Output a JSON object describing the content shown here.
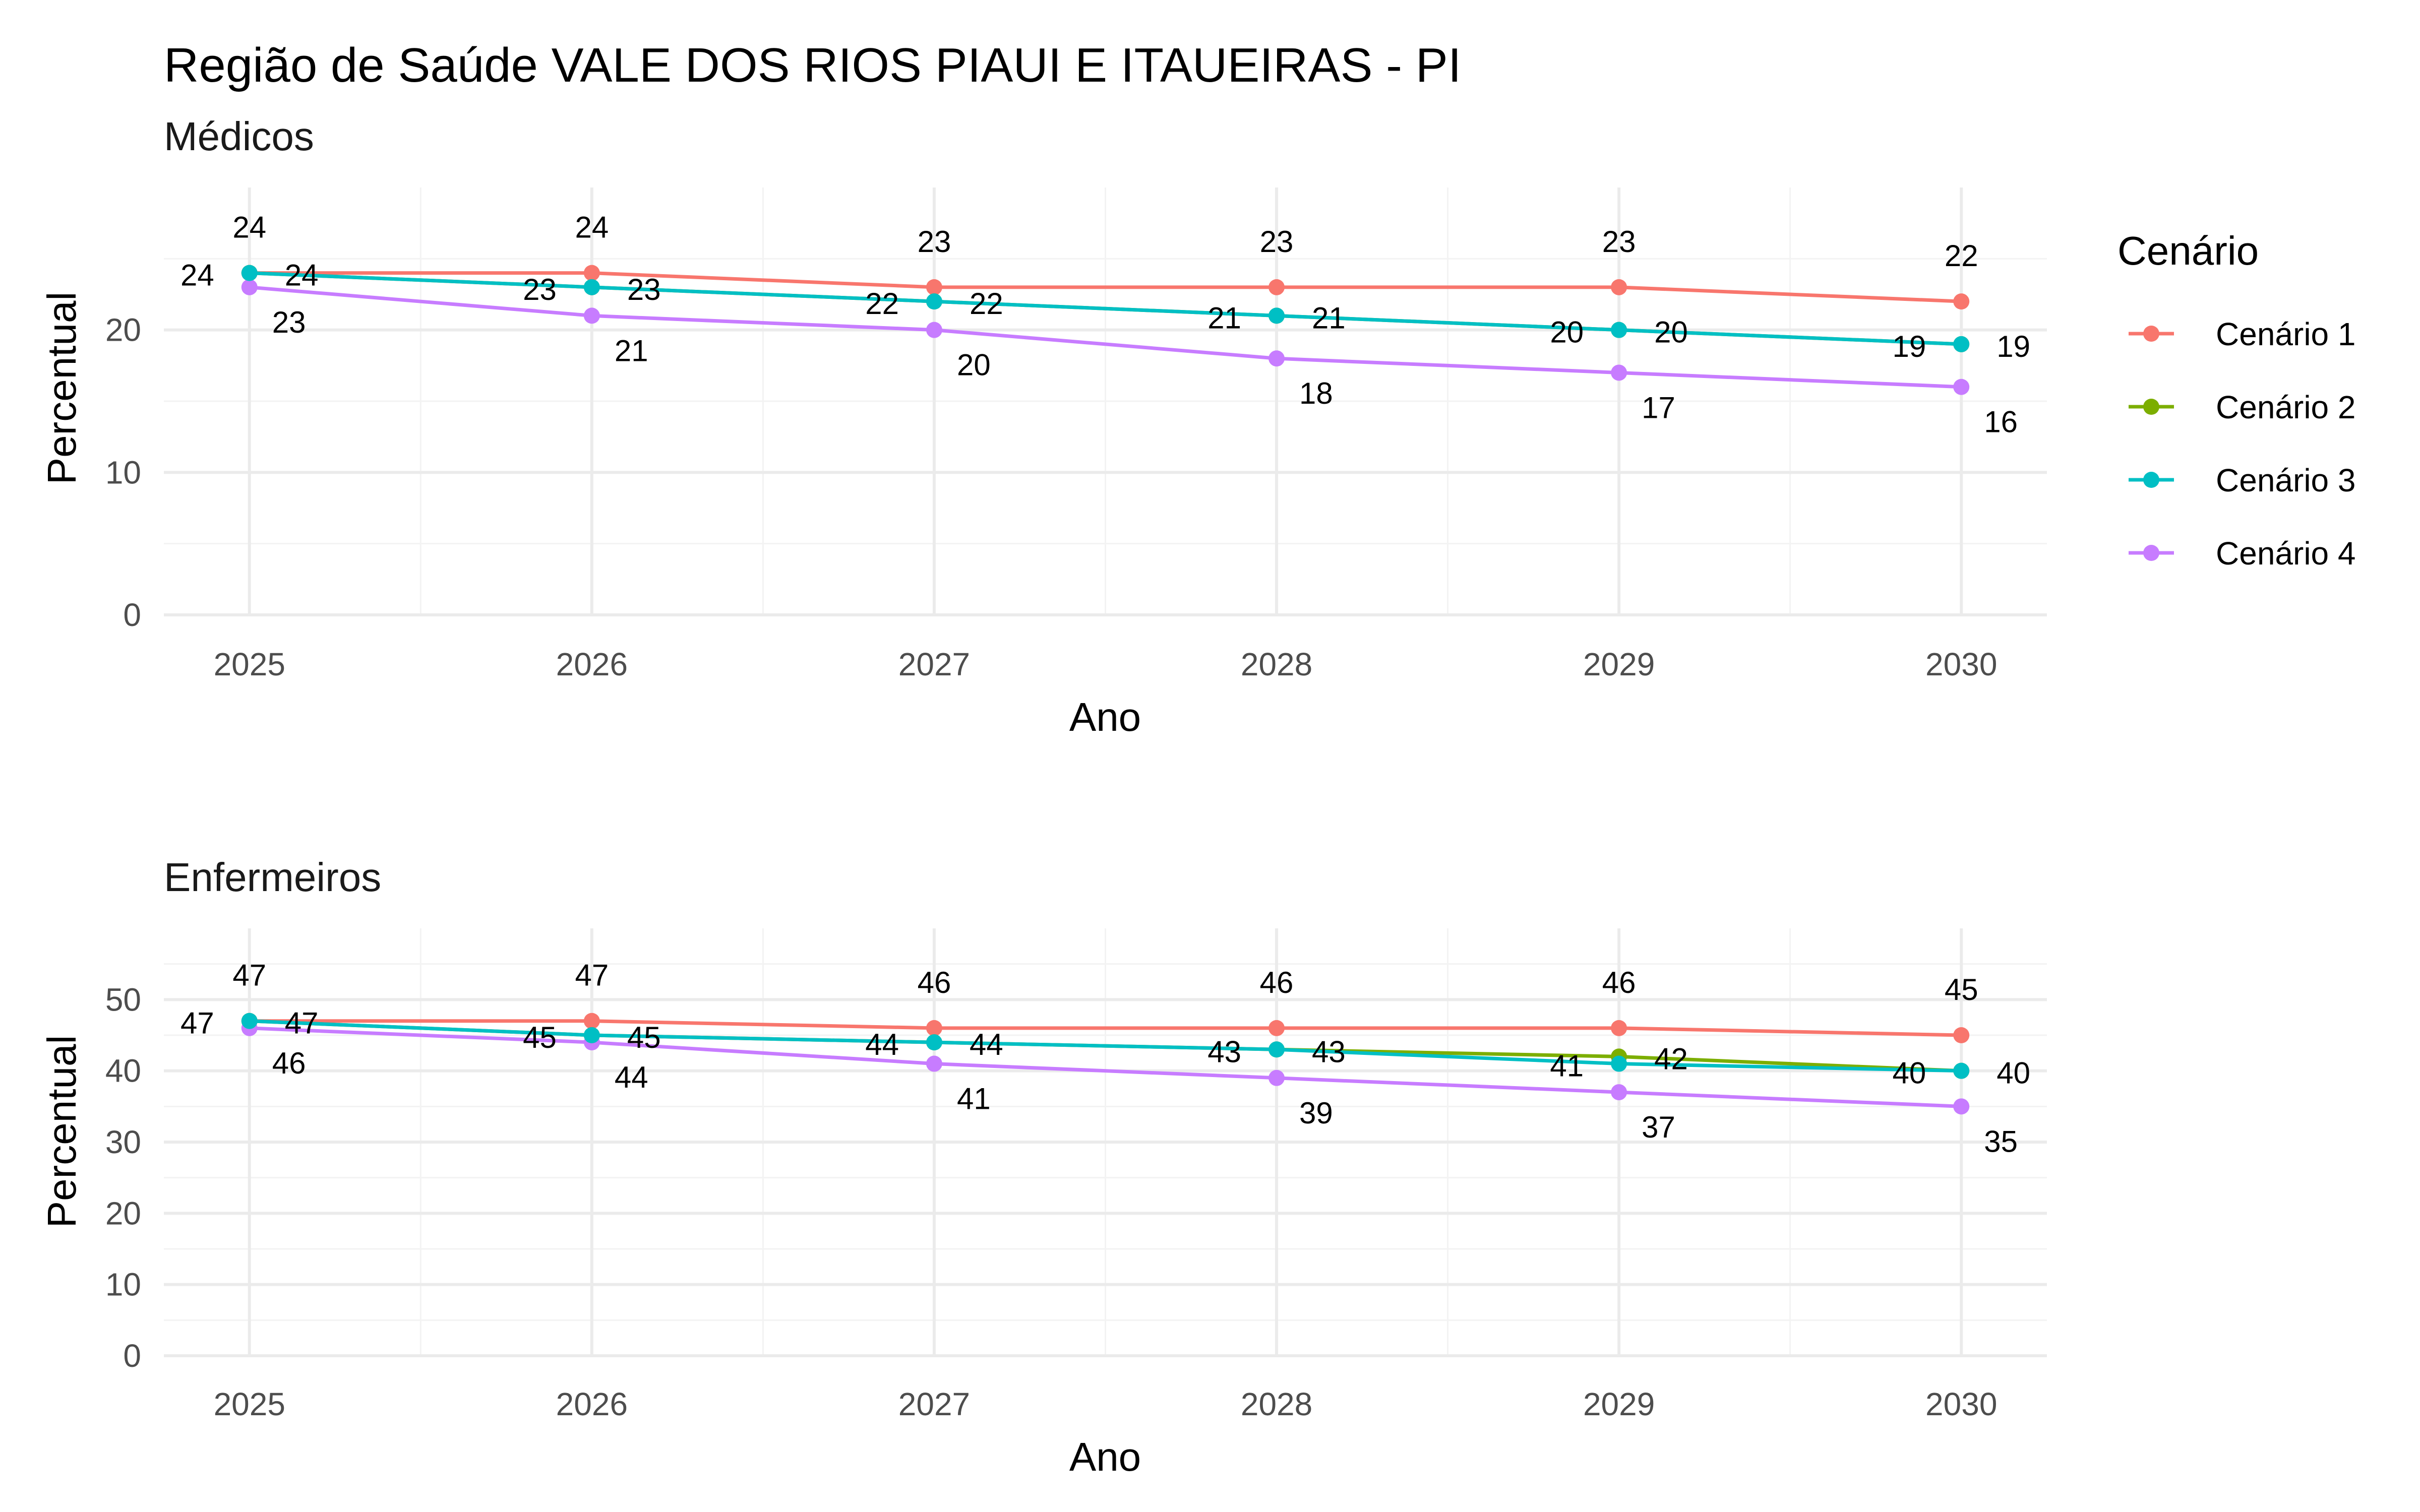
{
  "title": "Região de Saúde VALE DOS RIOS PIAUI E ITAUEIRAS - PI",
  "legend": {
    "title": "Cenário",
    "placement": "right",
    "items": [
      {
        "name": "Cenário 1",
        "color": "#F8766D"
      },
      {
        "name": "Cenário 2",
        "color": "#7CAE00"
      },
      {
        "name": "Cenário 3",
        "color": "#00BFC4"
      },
      {
        "name": "Cenário 4",
        "color": "#C77CFF"
      }
    ]
  },
  "chart_data": [
    {
      "type": "line",
      "title": "",
      "subtitle": "Médicos",
      "xlabel": "Ano",
      "ylabel": "Percentual",
      "x": [
        2025,
        2026,
        2027,
        2028,
        2029,
        2030
      ],
      "x_ticks": [
        "2025",
        "2026",
        "2027",
        "2028",
        "2029",
        "2030"
      ],
      "y_ticks": [
        "0",
        "10",
        "20"
      ],
      "ylim": [
        0,
        30
      ],
      "grid": true,
      "series": [
        {
          "name": "Cenário 1",
          "values": [
            24,
            24,
            23,
            23,
            23,
            22
          ],
          "labels": [
            "24",
            "24",
            "23",
            "23",
            "23",
            "22"
          ]
        },
        {
          "name": "Cenário 2",
          "values": [
            24,
            23,
            22,
            21,
            20,
            19
          ],
          "labels": [
            "24",
            "23",
            "22",
            "21",
            "20",
            "19"
          ]
        },
        {
          "name": "Cenário 3",
          "values": [
            24,
            23,
            22,
            21,
            20,
            19
          ],
          "labels": [
            "24",
            "23",
            "22",
            "21",
            "20",
            "19"
          ]
        },
        {
          "name": "Cenário 4",
          "values": [
            23,
            21,
            20,
            18,
            17,
            16
          ],
          "labels": [
            "23",
            "21",
            "20",
            "18",
            "17",
            "16"
          ]
        }
      ]
    },
    {
      "type": "line",
      "title": "",
      "subtitle": "Enfermeiros",
      "xlabel": "Ano",
      "ylabel": "Percentual",
      "x": [
        2025,
        2026,
        2027,
        2028,
        2029,
        2030
      ],
      "x_ticks": [
        "2025",
        "2026",
        "2027",
        "2028",
        "2029",
        "2030"
      ],
      "y_ticks": [
        "0",
        "10",
        "20",
        "30",
        "40",
        "50"
      ],
      "ylim": [
        0,
        60
      ],
      "grid": true,
      "series": [
        {
          "name": "Cenário 1",
          "values": [
            47,
            47,
            46,
            46,
            46,
            45
          ],
          "labels": [
            "47",
            "47",
            "46",
            "46",
            "46",
            "45"
          ]
        },
        {
          "name": "Cenário 2",
          "values": [
            47,
            45,
            44,
            43,
            42,
            40
          ],
          "labels": [
            "47",
            "45",
            "44",
            "43",
            "42",
            "40"
          ]
        },
        {
          "name": "Cenário 3",
          "values": [
            47,
            45,
            44,
            43,
            41,
            40
          ],
          "labels": [
            "47",
            "45",
            "44",
            "43",
            "41",
            "40"
          ]
        },
        {
          "name": "Cenário 4",
          "values": [
            46,
            44,
            41,
            39,
            37,
            35
          ],
          "labels": [
            "46",
            "44",
            "41",
            "39",
            "37",
            "35"
          ]
        }
      ]
    }
  ]
}
